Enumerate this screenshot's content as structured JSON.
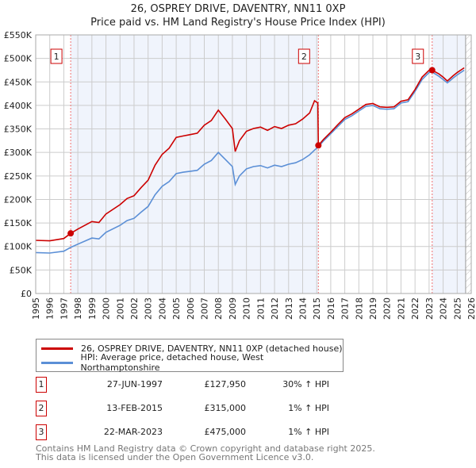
{
  "chart_data": {
    "type": "line",
    "title": "26, OSPREY DRIVE, DAVENTRY, NN11 0XP",
    "subtitle": "Price paid vs. HM Land Registry's House Price Index (HPI)",
    "xlim": [
      1995,
      2026
    ],
    "ylim": [
      0,
      550000
    ],
    "yticks": [
      0,
      50000,
      100000,
      150000,
      200000,
      250000,
      300000,
      350000,
      400000,
      450000,
      500000,
      550000
    ],
    "ytick_labels": [
      "£0",
      "£50K",
      "£100K",
      "£150K",
      "£200K",
      "£250K",
      "£300K",
      "£350K",
      "£400K",
      "£450K",
      "£500K",
      "£550K"
    ],
    "xticks": [
      "1995",
      "1996",
      "1997",
      "1998",
      "1999",
      "2000",
      "2001",
      "2002",
      "2003",
      "2004",
      "2005",
      "2006",
      "2007",
      "2008",
      "2009",
      "2010",
      "2011",
      "2012",
      "2013",
      "2014",
      "2015",
      "2016",
      "2017",
      "2018",
      "2019",
      "2020",
      "2021",
      "2022",
      "2023",
      "2024",
      "2025",
      "2026"
    ],
    "grid": true,
    "x": [
      1995,
      1996,
      1997,
      1997.49,
      1998,
      1999,
      1999.5,
      2000,
      2001,
      2001.5,
      2002,
      2002.5,
      2003,
      2003.5,
      2004,
      2004.5,
      2005,
      2005.5,
      2006,
      2006.5,
      2007,
      2007.5,
      2008,
      2008.5,
      2009,
      2009.2,
      2009.5,
      2010,
      2010.5,
      2011,
      2011.5,
      2012,
      2012.5,
      2013,
      2013.5,
      2014,
      2014.5,
      2014.85,
      2015.08,
      2015.12,
      2015.5,
      2016,
      2016.5,
      2017,
      2017.5,
      2018,
      2018.5,
      2019,
      2019.5,
      2020,
      2020.5,
      2021,
      2021.5,
      2022,
      2022.5,
      2023,
      2023.22,
      2023.7,
      2024,
      2024.3,
      2024.7,
      2025,
      2025.5
    ],
    "series": [
      {
        "name": "26, OSPREY DRIVE, DAVENTRY, NN11 0XP (detached house)",
        "color": "#cc0000",
        "values": [
          113000,
          112000,
          117000,
          127950,
          137000,
          153000,
          151000,
          169000,
          189000,
          202000,
          208000,
          225000,
          241000,
          273000,
          296000,
          309000,
          332000,
          335000,
          338000,
          341000,
          358000,
          368000,
          390000,
          371000,
          351000,
          302000,
          325000,
          345000,
          351000,
          354000,
          347000,
          355000,
          351000,
          358000,
          361000,
          371000,
          384000,
          410000,
          405000,
          315000,
          328000,
          343000,
          359000,
          374000,
          382000,
          392000,
          402000,
          404000,
          397000,
          396000,
          397000,
          409000,
          412000,
          434000,
          460000,
          475000,
          475000,
          467000,
          460000,
          452000,
          463000,
          470000,
          480000
        ]
      },
      {
        "name": "HPI: Average price, detached house, West Northamptonshire",
        "color": "#5b8fd6",
        "values": [
          87000,
          86000,
          90000,
          98000,
          105000,
          118000,
          116000,
          130000,
          145000,
          155000,
          160000,
          173000,
          185000,
          210000,
          228000,
          238000,
          255000,
          258000,
          260000,
          262000,
          275000,
          283000,
          300000,
          285000,
          270000,
          232000,
          250000,
          265000,
          270000,
          272000,
          267000,
          273000,
          270000,
          275000,
          278000,
          285000,
          295000,
          305000,
          311000,
          312000,
          325000,
          340000,
          355000,
          370000,
          378000,
          388000,
          398000,
          400000,
          393000,
          392000,
          393000,
          405000,
          408000,
          430000,
          455000,
          470000,
          471000,
          462000,
          455000,
          448000,
          458000,
          465000,
          475000
        ]
      }
    ],
    "sales": [
      {
        "label": "1",
        "x": 1997.49,
        "price": 127950,
        "date": "27-JUN-1997",
        "price_text": "£127,950",
        "hpi_text": "30% ↑ HPI"
      },
      {
        "label": "2",
        "x": 2015.12,
        "price": 315000,
        "date": "13-FEB-2015",
        "price_text": "£315,000",
        "hpi_text": "1% ↑ HPI"
      },
      {
        "label": "3",
        "x": 2023.22,
        "price": 475000,
        "date": "22-MAR-2023",
        "price_text": "£475,000",
        "hpi_text": "1% ↑ HPI"
      }
    ],
    "forecast_start": 2025.6,
    "legend_placement": "below"
  },
  "footer": {
    "line1": "Contains HM Land Registry data © Crown copyright and database right 2025.",
    "line2": "This data is licensed under the Open Government Licence v3.0."
  }
}
